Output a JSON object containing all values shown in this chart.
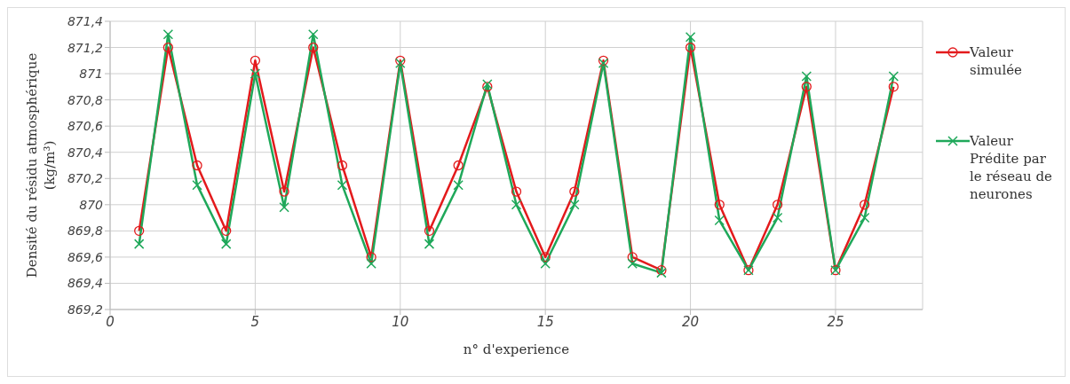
{
  "chart_data": {
    "type": "line",
    "xlabel": "n° d'experience",
    "ylabel": "Densité du résidu atmosphérique (kg/m³)",
    "x": [
      1,
      2,
      3,
      4,
      5,
      6,
      7,
      8,
      9,
      10,
      11,
      12,
      13,
      14,
      15,
      16,
      17,
      18,
      19,
      20,
      21,
      22,
      23,
      24,
      25,
      26,
      27
    ],
    "series": [
      {
        "name": "Valeur simulée",
        "color": "#e31a1c",
        "marker": "circle",
        "values": [
          869.8,
          871.2,
          870.3,
          869.8,
          871.1,
          870.1,
          871.2,
          870.3,
          869.6,
          871.1,
          869.8,
          870.3,
          870.9,
          870.1,
          869.6,
          870.1,
          871.1,
          869.6,
          869.5,
          871.2,
          870.0,
          869.5,
          870.0,
          870.9,
          869.5,
          870.0,
          870.9
        ]
      },
      {
        "name": "Valeur Prédite par le réseau de neurones",
        "color": "#1fa85a",
        "marker": "cross",
        "values": [
          869.7,
          871.3,
          870.15,
          869.7,
          871.0,
          869.98,
          871.3,
          870.15,
          869.55,
          871.08,
          869.7,
          870.15,
          870.92,
          870.0,
          869.55,
          870.0,
          871.08,
          869.55,
          869.48,
          871.28,
          869.88,
          869.5,
          869.9,
          870.98,
          869.5,
          869.9,
          870.98
        ]
      }
    ],
    "xlim": [
      0,
      28
    ],
    "xticks": [
      0,
      5,
      10,
      15,
      20,
      25
    ],
    "ylim": [
      869.2,
      871.4
    ],
    "yticks": [
      {
        "value": 869.2,
        "label": "869,2"
      },
      {
        "value": 869.4,
        "label": "869,4"
      },
      {
        "value": 869.6,
        "label": "869,6"
      },
      {
        "value": 869.8,
        "label": "869,8"
      },
      {
        "value": 870,
        "label": "870"
      },
      {
        "value": 870.2,
        "label": "870,2"
      },
      {
        "value": 870.4,
        "label": "870,4"
      },
      {
        "value": 870.6,
        "label": "870,6"
      },
      {
        "value": 870.8,
        "label": "870,8"
      },
      {
        "value": 871,
        "label": "871"
      },
      {
        "value": 871.2,
        "label": "871,2"
      },
      {
        "value": 871.4,
        "label": "871,4"
      }
    ],
    "grid": true,
    "legend": "right",
    "line_style": "solid"
  }
}
